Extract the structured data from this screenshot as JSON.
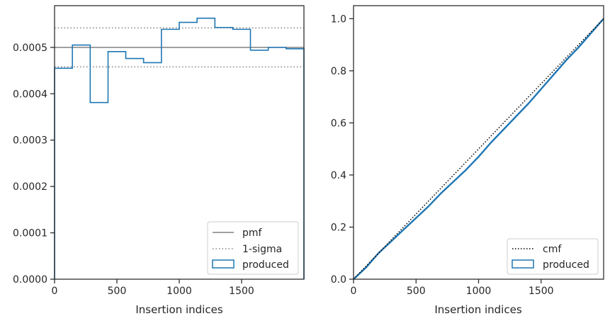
{
  "chart_data": [
    {
      "type": "line",
      "xlabel": "Insertion indices",
      "ylabel": "",
      "xlim": [
        0,
        2000
      ],
      "ylim": [
        0,
        0.00059
      ],
      "xticks": [
        0,
        500,
        1000,
        1500
      ],
      "xtick_labels": [
        "0",
        "500",
        "1000",
        "1500"
      ],
      "yticks": [
        0,
        0.0001,
        0.0002,
        0.0003,
        0.0004,
        0.0005
      ],
      "ytick_labels": [
        "0.0000",
        "0.0001",
        "0.0002",
        "0.0003",
        "0.0004",
        "0.0005"
      ],
      "grid": false,
      "legend_position": "bottom-right",
      "legend": [
        "pmf",
        "1-sigma",
        "produced"
      ],
      "pmf": 0.0005,
      "sigma_band": [
        0.000458,
        0.000542
      ],
      "produced_bins": {
        "edges": [
          0,
          143,
          286,
          429,
          571,
          714,
          857,
          1000,
          1143,
          1286,
          1429,
          1571,
          1714,
          1857,
          2000
        ],
        "values": [
          0.000455,
          0.000505,
          0.000381,
          0.000491,
          0.000476,
          0.000467,
          0.000539,
          0.000554,
          0.000563,
          0.000543,
          0.000539,
          0.000494,
          0.0005,
          0.000497
        ]
      },
      "colors": {
        "pmf": "#808080",
        "sigma": "#808080",
        "produced": "#1f77b4"
      }
    },
    {
      "type": "line",
      "xlabel": "Insertion indices",
      "ylabel": "",
      "xlim": [
        0,
        2000
      ],
      "ylim": [
        0,
        1.05
      ],
      "xticks": [
        0,
        500,
        1000,
        1500
      ],
      "xtick_labels": [
        "0",
        "500",
        "1000",
        "1500"
      ],
      "yticks": [
        0,
        0.2,
        0.4,
        0.6,
        0.8,
        1.0
      ],
      "ytick_labels": [
        "0.0",
        "0.2",
        "0.4",
        "0.6",
        "0.8",
        "1.0"
      ],
      "grid": false,
      "legend_position": "bottom-right",
      "legend": [
        "cmf",
        "produced"
      ],
      "cmf": {
        "x": [
          0,
          2000
        ],
        "y": [
          0,
          1
        ]
      },
      "produced": {
        "x": [
          0,
          100,
          200,
          300,
          400,
          500,
          600,
          700,
          800,
          900,
          1000,
          1100,
          1200,
          1300,
          1400,
          1500,
          1600,
          1700,
          1800,
          1900,
          2000
        ],
        "y": [
          0,
          0.045,
          0.1,
          0.145,
          0.19,
          0.235,
          0.28,
          0.33,
          0.375,
          0.42,
          0.47,
          0.525,
          0.575,
          0.625,
          0.675,
          0.73,
          0.785,
          0.84,
          0.89,
          0.945,
          1.0
        ]
      },
      "colors": {
        "cmf": "#000000",
        "produced": "#1f77b4"
      }
    }
  ]
}
